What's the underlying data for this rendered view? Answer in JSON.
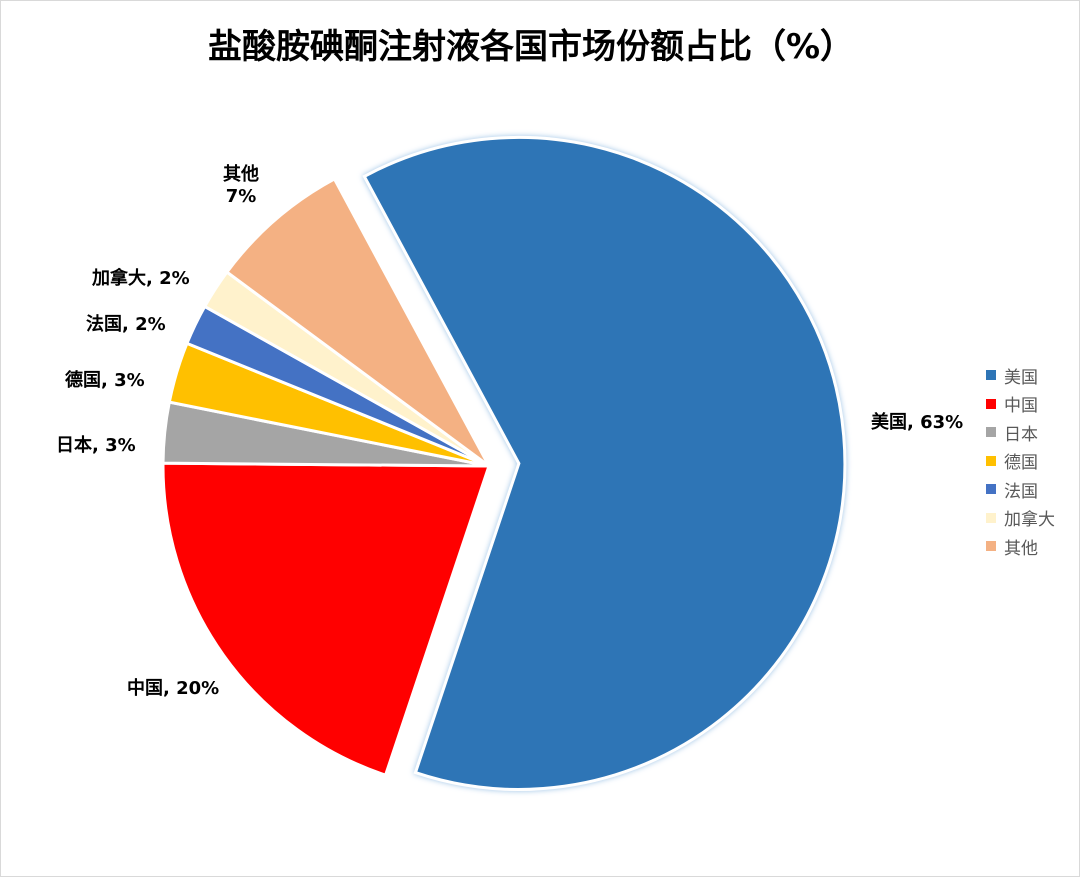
{
  "chart_data": {
    "type": "pie",
    "title": "盐酸胺碘酮注射液各国市场份额占比（%）",
    "categories": [
      "美国",
      "中国",
      "日本",
      "德国",
      "法国",
      "加拿大",
      "其他"
    ],
    "values": [
      63,
      20,
      3,
      3,
      2,
      2,
      7
    ],
    "data_labels": [
      "美国, 63%",
      "中国, 20%",
      "日本, 3%",
      "德国, 3%",
      "法国, 2%",
      "加拿大, 2%",
      "其他\n7%"
    ],
    "colors": [
      "#2E75B6",
      "#FF0000",
      "#A5A5A5",
      "#FFC000",
      "#4472C4",
      "#FFF2CC",
      "#F4B183"
    ],
    "exploded": [
      "美国"
    ],
    "legend": "right"
  }
}
